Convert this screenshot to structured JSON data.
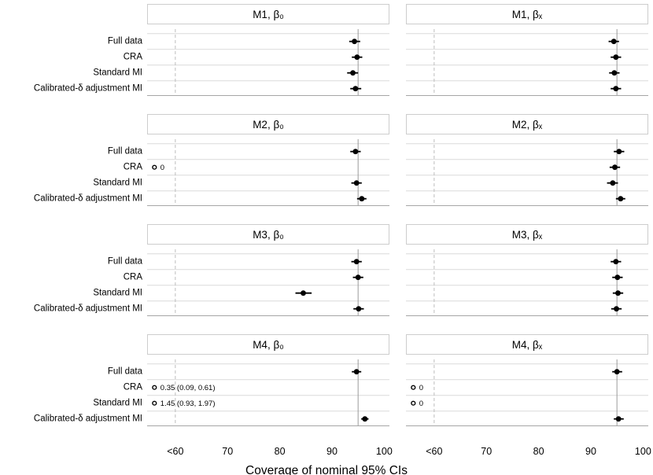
{
  "chart_data": {
    "type": "scatter",
    "title": "",
    "xlabel": "Coverage of nominal 95% CIs",
    "xlim": [
      54.6,
      101.0
    ],
    "x_ticks": [
      {
        "label": "<60",
        "value": 60
      },
      {
        "label": "70",
        "value": 70
      },
      {
        "label": "80",
        "value": 80
      },
      {
        "label": "90",
        "value": 90
      },
      {
        "label": "100",
        "value": 100
      }
    ],
    "nominal_coverage_line": 95,
    "truncation_dashed_line": 60,
    "truncated_plot_value": 56,
    "grid": "horizontal-light",
    "legend_position": "none",
    "methods": [
      "Full data",
      "CRA",
      "Standard MI",
      "Calibrated-δ adjustment MI"
    ],
    "panels": [
      {
        "id": "m1_b0",
        "title": "M1, β₀",
        "points": [
          {
            "est": 94.3,
            "lo": 93.3,
            "hi": 95.4
          },
          {
            "est": 94.8,
            "lo": 93.8,
            "hi": 95.8
          },
          {
            "est": 94.0,
            "lo": 92.9,
            "hi": 95.0
          },
          {
            "est": 94.5,
            "lo": 93.5,
            "hi": 95.6
          }
        ]
      },
      {
        "id": "m1_bx",
        "title": "M1, βₓ",
        "points": [
          {
            "est": 94.4,
            "lo": 93.4,
            "hi": 95.4
          },
          {
            "est": 94.8,
            "lo": 93.8,
            "hi": 95.8
          },
          {
            "est": 94.5,
            "lo": 93.5,
            "hi": 95.5
          },
          {
            "est": 94.8,
            "lo": 93.8,
            "hi": 95.8
          }
        ]
      },
      {
        "id": "m2_b0",
        "title": "M2, β₀",
        "points": [
          {
            "est": 94.5,
            "lo": 93.5,
            "hi": 95.5
          },
          {
            "truncated": true,
            "label": "0"
          },
          {
            "est": 94.7,
            "lo": 93.7,
            "hi": 95.7
          },
          {
            "est": 95.7,
            "lo": 94.8,
            "hi": 96.6
          }
        ]
      },
      {
        "id": "m2_bx",
        "title": "M2, βₓ",
        "points": [
          {
            "est": 95.4,
            "lo": 94.4,
            "hi": 96.4
          },
          {
            "est": 94.6,
            "lo": 93.6,
            "hi": 95.6
          },
          {
            "est": 94.2,
            "lo": 93.1,
            "hi": 95.2
          },
          {
            "est": 95.7,
            "lo": 94.8,
            "hi": 96.6
          }
        ]
      },
      {
        "id": "m3_b0",
        "title": "M3, β₀",
        "points": [
          {
            "est": 94.7,
            "lo": 93.7,
            "hi": 95.7
          },
          {
            "est": 95.0,
            "lo": 94.0,
            "hi": 96.0
          },
          {
            "est": 84.5,
            "lo": 83.0,
            "hi": 86.1
          },
          {
            "est": 95.1,
            "lo": 94.1,
            "hi": 96.1
          }
        ]
      },
      {
        "id": "m3_bx",
        "title": "M3, βₓ",
        "points": [
          {
            "est": 94.8,
            "lo": 93.8,
            "hi": 95.8
          },
          {
            "est": 95.1,
            "lo": 94.1,
            "hi": 96.1
          },
          {
            "est": 95.2,
            "lo": 94.2,
            "hi": 96.2
          },
          {
            "est": 94.9,
            "lo": 93.9,
            "hi": 95.9
          }
        ]
      },
      {
        "id": "m4_b0",
        "title": "M4, β₀",
        "points": [
          {
            "est": 94.7,
            "lo": 93.8,
            "hi": 95.6
          },
          {
            "truncated": true,
            "label": "0.35 (0.09, 0.61)"
          },
          {
            "truncated": true,
            "label": "1.45 (0.93, 1.97)"
          },
          {
            "est": 96.3,
            "lo": 95.6,
            "hi": 97.0
          }
        ]
      },
      {
        "id": "m4_bx",
        "title": "M4, βₓ",
        "points": [
          {
            "est": 95.0,
            "lo": 94.1,
            "hi": 96.0
          },
          {
            "truncated": true,
            "label": "0"
          },
          {
            "truncated": true,
            "label": "0"
          },
          {
            "est": 95.3,
            "lo": 94.4,
            "hi": 96.3
          }
        ]
      }
    ]
  },
  "colors": {
    "background": "#ffffff",
    "gridline": "#dadada",
    "axis_line": "#a6a6a6",
    "strip_border": "#cdcdcd",
    "truncation_line": "#bdbdbd",
    "nominal_line": "#9b9b9b",
    "point": "#000000",
    "text": "#000000"
  }
}
